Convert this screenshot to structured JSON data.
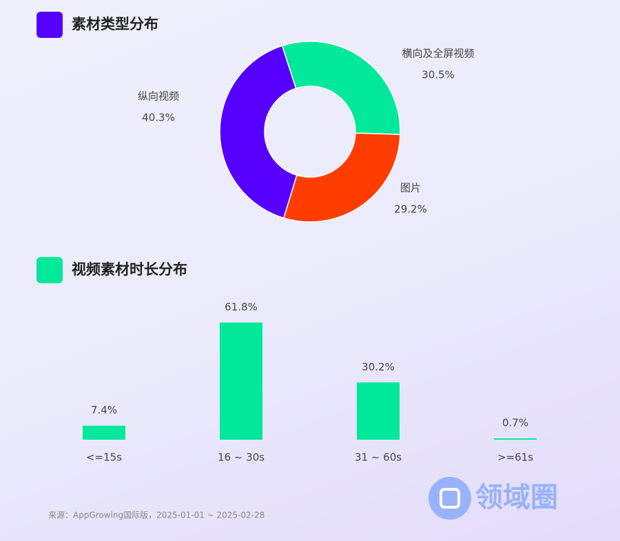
{
  "chart_data": [
    {
      "type": "donut",
      "title": "素材类型分布",
      "title_color": "#5500ff",
      "categories": [
        "横向及全屏视频",
        "图片",
        "纵向视频"
      ],
      "values": [
        30.5,
        29.2,
        40.3
      ],
      "value_labels": [
        "30.5%",
        "29.2%",
        "40.3%"
      ],
      "colors": [
        "#00e89a",
        "#ff3d00",
        "#5500ff"
      ]
    },
    {
      "type": "bar",
      "title": "视频素材时长分布",
      "title_color": "#00e89a",
      "categories": [
        "<=15s",
        "16 ~ 30s",
        "31 ~ 60s",
        ">=61s"
      ],
      "values": [
        7.4,
        61.8,
        30.2,
        0.7
      ],
      "value_labels": [
        "7.4%",
        "61.8%",
        "30.2%",
        "0.7%"
      ],
      "color": "#00e89a"
    }
  ],
  "footer": {
    "source": "来源：AppGrowing国际版，2025-01-01 ~ 2025-02-28"
  },
  "watermark": {
    "text": "领域圈"
  }
}
